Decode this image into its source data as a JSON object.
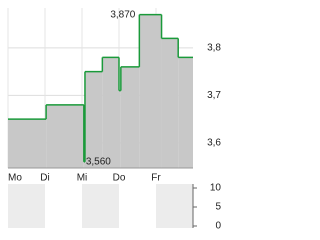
{
  "chart_data": {
    "type": "step-area",
    "x": [
      0,
      1.03,
      2.05,
      2.08,
      2.55,
      3.0,
      3.05,
      3.55,
      4.15,
      4.6
    ],
    "values": [
      3.65,
      3.68,
      3.56,
      3.75,
      3.78,
      3.71,
      3.76,
      3.87,
      3.82,
      3.78
    ],
    "color": "#1a9a3a",
    "fill": "#c8c8c8",
    "xlim": [
      0,
      5
    ],
    "xticks": [
      {
        "value": 0,
        "label": "Mo"
      },
      {
        "value": 1,
        "label": "Di"
      },
      {
        "value": 2,
        "label": "Mi"
      },
      {
        "value": 3,
        "label": "Do"
      },
      {
        "value": 4,
        "label": "Fr"
      }
    ],
    "ylim": [
      3.547,
      3.884
    ],
    "yticks": [
      {
        "value": 3.6,
        "label": "3,6"
      },
      {
        "value": 3.7,
        "label": "3,7"
      },
      {
        "value": 3.8,
        "label": "3,8"
      }
    ],
    "annotations": [
      {
        "x": 3.55,
        "value": 3.87,
        "label": "3,870"
      },
      {
        "x": 2.05,
        "value": 3.56,
        "label": "3,560"
      }
    ],
    "grid": true,
    "volume": {
      "ylim": [
        0,
        10
      ],
      "yticks": [
        0,
        5,
        10
      ]
    }
  }
}
